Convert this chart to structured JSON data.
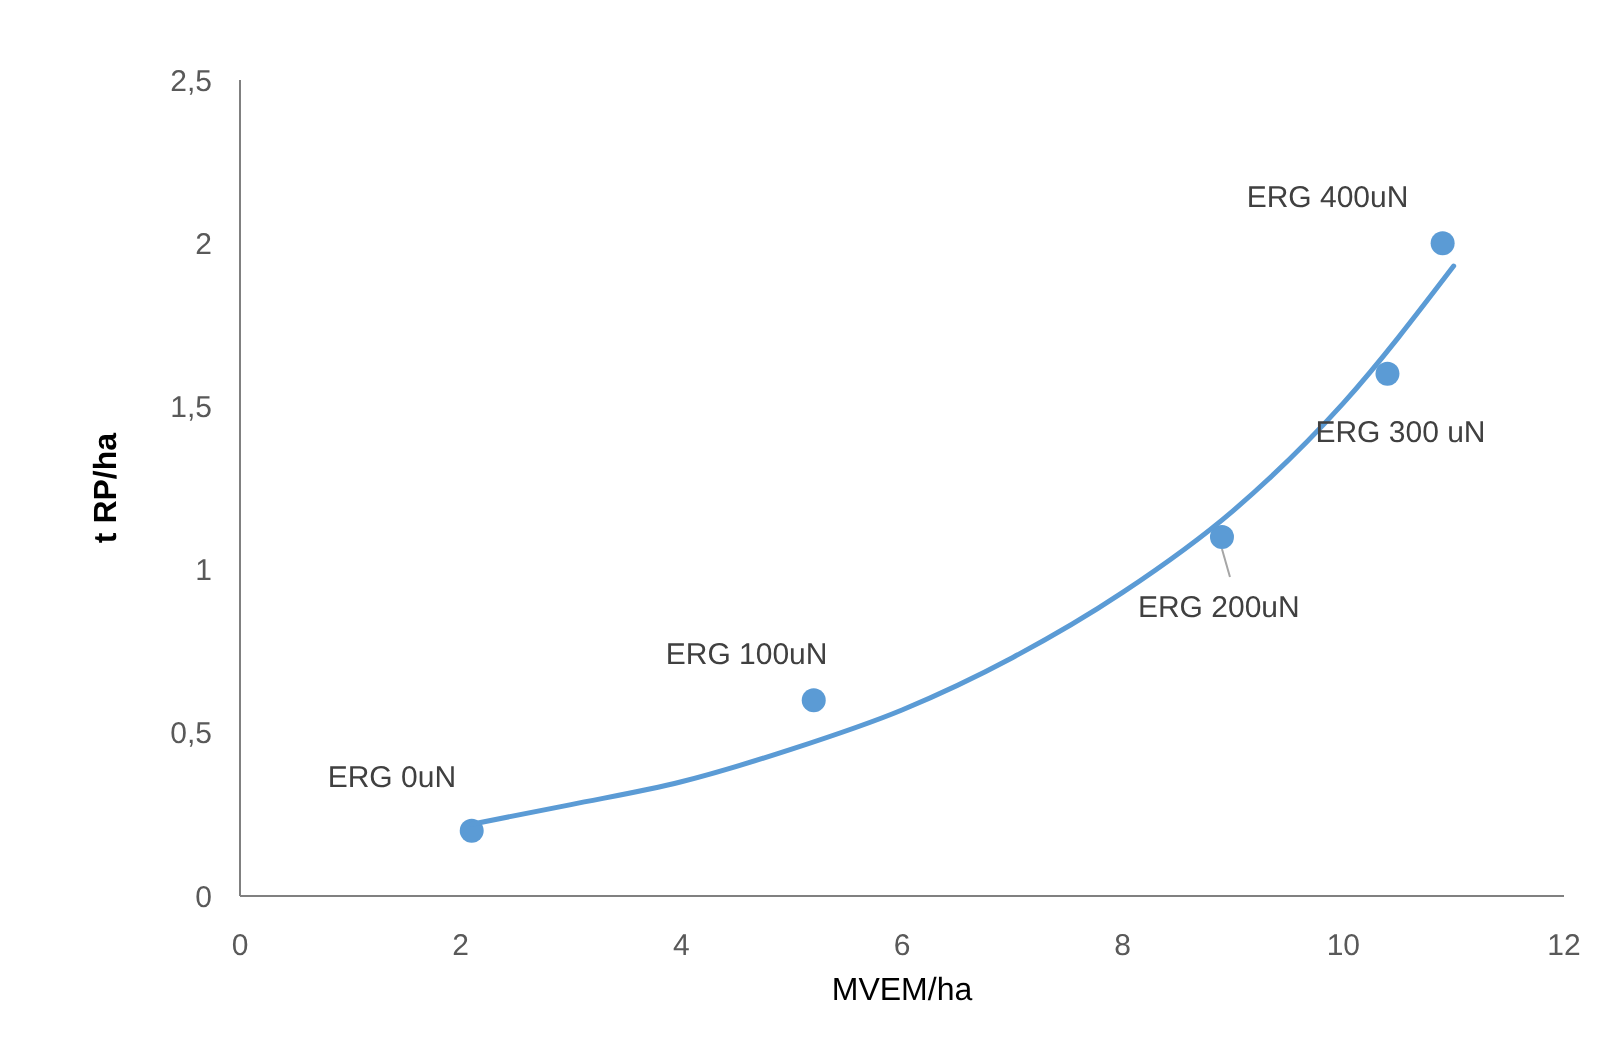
{
  "chart_data": {
    "type": "scatter",
    "xlabel": "MVEM/ha",
    "ylabel": "t RP/ha",
    "xlim": [
      0,
      12
    ],
    "ylim": [
      0,
      2.5
    ],
    "xticks": [
      0,
      2,
      4,
      6,
      8,
      10,
      12
    ],
    "yticks": [
      0,
      {
        "value": 0.5,
        "label": "0,5"
      },
      1,
      {
        "value": 1.5,
        "label": "1,5"
      },
      2,
      {
        "value": 2.5,
        "label": "2,5"
      }
    ],
    "grid": false,
    "marker": "circle",
    "series": [
      {
        "color": "#5b9bd5",
        "x": [
          2.1,
          5.2,
          8.9,
          10.4,
          10.9
        ],
        "values": [
          0.2,
          0.6,
          1.1,
          1.6,
          2.0
        ]
      },
      {
        "type": "line",
        "color": "#5b9bd5",
        "line_style": "solid",
        "marker": "none",
        "x": [
          2.1,
          3,
          4,
          5,
          6,
          7,
          8,
          9,
          10,
          11
        ],
        "values": [
          0.22,
          0.28,
          0.35,
          0.45,
          0.57,
          0.73,
          0.93,
          1.18,
          1.51,
          1.93
        ]
      }
    ],
    "annotations": [
      {
        "text": "ERG 0uN",
        "x": 2.1,
        "y": 0.2
      },
      {
        "text": "ERG 100uN",
        "x": 5.2,
        "y": 0.6
      },
      {
        "text": "ERG 200uN",
        "x": 8.9,
        "y": 1.1
      },
      {
        "text": "ERG 300 uN",
        "x": 10.4,
        "y": 1.6
      },
      {
        "text": "ERG 400uN",
        "x": 10.9,
        "y": 2.0
      }
    ]
  }
}
